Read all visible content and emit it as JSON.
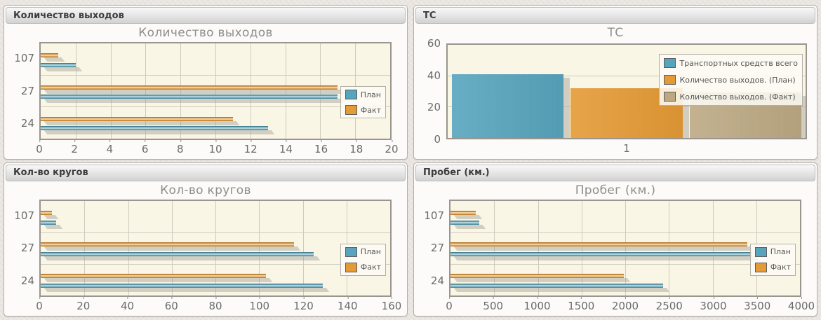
{
  "colors": {
    "plan": "#57a4bc",
    "fact": "#e49a35",
    "fact_total": "#bca983",
    "plot_background": "#faf6e6",
    "gridline": "#cfcabf",
    "axis_text": "#6b6b6b",
    "title_text": "#8e8e8e",
    "header_text": "#3c3c3c"
  },
  "panels": [
    {
      "header": "Количество выходов"
    },
    {
      "header": "ТС"
    },
    {
      "header": "Кол-во кругов"
    },
    {
      "header": "Пробег (км.)"
    }
  ],
  "chart_data": [
    {
      "type": "bar",
      "orientation": "horizontal",
      "title": "Количество выходов",
      "categories": [
        "107",
        "27",
        "24"
      ],
      "series": [
        {
          "name": "План",
          "color": "#57a4bc",
          "values": [
            2,
            17,
            13
          ]
        },
        {
          "name": "Факт",
          "color": "#e49a35",
          "values": [
            1,
            17,
            11
          ]
        }
      ],
      "xlim": [
        0,
        20
      ],
      "xticks": [
        0,
        2,
        4,
        6,
        8,
        10,
        12,
        14,
        16,
        18,
        20
      ],
      "grid": true,
      "legend_position": "right-middle"
    },
    {
      "type": "bar",
      "orientation": "vertical",
      "title": "ТС",
      "categories": [
        "1"
      ],
      "series": [
        {
          "name": "Транспортных средств всего",
          "color": "#57a4bc",
          "values": [
            41
          ]
        },
        {
          "name": "Количество выходов. (План)",
          "color": "#e49a35",
          "values": [
            32
          ]
        },
        {
          "name": "Количество выходов. (Факт)",
          "color": "#bca983",
          "values": [
            29
          ]
        }
      ],
      "ylim": [
        0,
        60
      ],
      "yticks": [
        0,
        20,
        40,
        60
      ],
      "grid": true,
      "legend_position": "top-right"
    },
    {
      "type": "bar",
      "orientation": "horizontal",
      "title": "Кол-во кругов",
      "categories": [
        "107",
        "27",
        "24"
      ],
      "series": [
        {
          "name": "План",
          "color": "#57a4bc",
          "values": [
            7,
            125,
            129
          ]
        },
        {
          "name": "Факт",
          "color": "#e49a35",
          "values": [
            5,
            116,
            103
          ]
        }
      ],
      "xlim": [
        0,
        160
      ],
      "xticks": [
        0,
        20,
        40,
        60,
        80,
        100,
        120,
        140,
        160
      ],
      "grid": true,
      "legend_position": "right-middle"
    },
    {
      "type": "bar",
      "orientation": "horizontal",
      "title": "Пробег (км.)",
      "categories": [
        "107",
        "27",
        "24"
      ],
      "series": [
        {
          "name": "План",
          "color": "#57a4bc",
          "values": [
            330,
            3450,
            2430
          ]
        },
        {
          "name": "Факт",
          "color": "#e49a35",
          "values": [
            290,
            3400,
            1980
          ]
        }
      ],
      "xlim": [
        0,
        4000
      ],
      "xticks": [
        0,
        500,
        1000,
        1500,
        2000,
        2500,
        3000,
        3500,
        4000
      ],
      "grid": true,
      "legend_position": "right-middle"
    }
  ]
}
